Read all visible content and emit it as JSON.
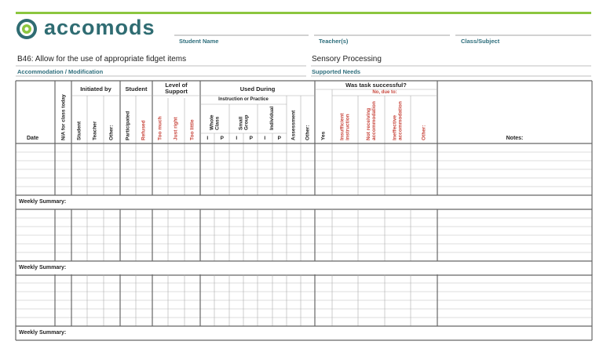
{
  "logo": "accomods",
  "fields": [
    "Student Name",
    "Teacher(s)",
    "Class/Subject"
  ],
  "accommodation": {
    "title": "B46: Allow for the use of appropriate fidget items",
    "label": "Accommodation / Modification"
  },
  "need": {
    "title": "Sensory Processing",
    "label": "Supported Needs"
  },
  "table": {
    "date": "Date",
    "na": "N/A for class today",
    "initiated_by": {
      "title": "Initiated by",
      "columns": [
        "Student",
        "Teacher",
        "Other:"
      ]
    },
    "student": {
      "title": "Student",
      "columns": [
        "Participated",
        "Refused"
      ]
    },
    "support": {
      "title": "Level of Support",
      "columns": [
        "Too much",
        "Just right",
        "Too little"
      ]
    },
    "used_during": {
      "title": "Used During",
      "subtitle": "Instruction or Practice",
      "groups": [
        "Whole Class",
        "Small Group",
        "Individual"
      ],
      "modes": [
        "I",
        "P"
      ],
      "columns": [
        "Assessment",
        "Other:"
      ]
    },
    "success": {
      "title": "Was task successful?",
      "yes": "Yes",
      "no_title": "No, due to:",
      "reasons": [
        "Insufficient instruction",
        "Not receiving accommodation",
        "Ineffective accommodation",
        "Other:"
      ]
    },
    "notes": "Notes:",
    "weekly_summary": [
      "Weekly Summary:",
      "Weekly Summary:",
      "Weekly Summary:"
    ]
  }
}
